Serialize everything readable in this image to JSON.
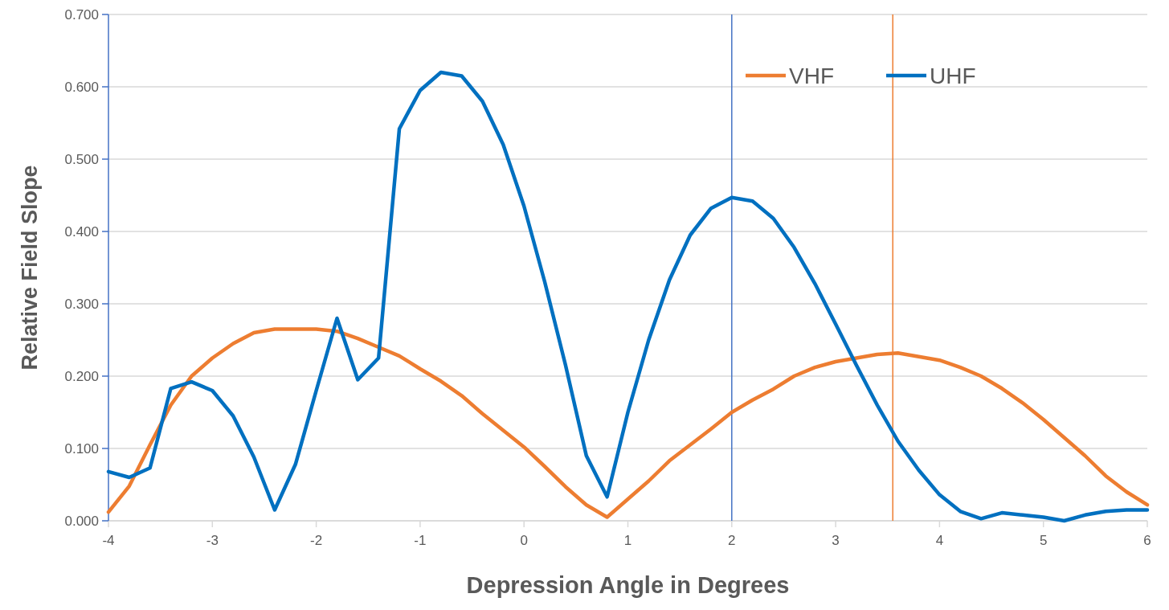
{
  "chart_data": {
    "type": "line",
    "xlabel": "Depression Angle in Degrees",
    "ylabel": "Relative Field Slope",
    "x": [
      -4,
      -3.8,
      -3.6,
      -3.4,
      -3.2,
      -3,
      -2.8,
      -2.6,
      -2.4,
      -2.2,
      -2,
      -1.8,
      -1.6,
      -1.4,
      -1.2,
      -1,
      -0.8,
      -0.6,
      -0.4,
      -0.2,
      0,
      0.2,
      0.4,
      0.6,
      0.8,
      1,
      1.2,
      1.4,
      1.6,
      1.8,
      2,
      2.2,
      2.4,
      2.6,
      2.8,
      3,
      3.2,
      3.4,
      3.6,
      3.8,
      4,
      4.2,
      4.4,
      4.6,
      4.8,
      5,
      5.2,
      5.4,
      5.6,
      5.8,
      6
    ],
    "series": [
      {
        "name": "VHF",
        "color": "#ed7d31",
        "values": [
          0.012,
          0.048,
          0.105,
          0.16,
          0.2,
          0.225,
          0.245,
          0.26,
          0.265,
          0.265,
          0.265,
          0.262,
          0.252,
          0.24,
          0.228,
          0.21,
          0.193,
          0.173,
          0.148,
          0.125,
          0.102,
          0.075,
          0.047,
          0.022,
          0.005,
          0.03,
          0.055,
          0.083,
          0.105,
          0.127,
          0.15,
          0.167,
          0.182,
          0.2,
          0.212,
          0.22,
          0.225,
          0.23,
          0.232,
          0.227,
          0.222,
          0.212,
          0.2,
          0.183,
          0.163,
          0.14,
          0.115,
          0.09,
          0.062,
          0.04,
          0.022
        ]
      },
      {
        "name": "UHF",
        "color": "#0070c0",
        "values": [
          0.068,
          0.06,
          0.073,
          0.183,
          0.192,
          0.18,
          0.145,
          0.088,
          0.015,
          0.078,
          0.18,
          0.28,
          0.195,
          0.225,
          0.542,
          0.595,
          0.62,
          0.615,
          0.58,
          0.52,
          0.435,
          0.33,
          0.215,
          0.09,
          0.033,
          0.15,
          0.25,
          0.333,
          0.395,
          0.432,
          0.447,
          0.442,
          0.418,
          0.378,
          0.328,
          0.272,
          0.215,
          0.16,
          0.11,
          0.07,
          0.036,
          0.013,
          0.003,
          0.011,
          0.008,
          0.005,
          0,
          0.008,
          0.013,
          0.015,
          0.015
        ]
      }
    ],
    "ref_lines": [
      {
        "axis": "x",
        "value": 2,
        "color": "#4472c4"
      },
      {
        "axis": "x",
        "value": 3.55,
        "color": "#ed7d31"
      }
    ],
    "xlim": [
      -4,
      6
    ],
    "xticks": [
      -4,
      -3,
      -2,
      -1,
      0,
      1,
      2,
      3,
      4,
      5,
      6
    ],
    "ylim": [
      0,
      0.7
    ],
    "yticks": [
      {
        "value": 0,
        "label": "0.000"
      },
      {
        "value": 0.1,
        "label": "0.100"
      },
      {
        "value": 0.2,
        "label": "0.200"
      },
      {
        "value": 0.3,
        "label": "0.300"
      },
      {
        "value": 0.4,
        "label": "0.400"
      },
      {
        "value": 0.5,
        "label": "0.500"
      },
      {
        "value": 0.6,
        "label": "0.600"
      },
      {
        "value": 0.7,
        "label": "0.700"
      }
    ],
    "grid": "y",
    "legend": "top right",
    "line_style": "solid",
    "marker": "none"
  }
}
